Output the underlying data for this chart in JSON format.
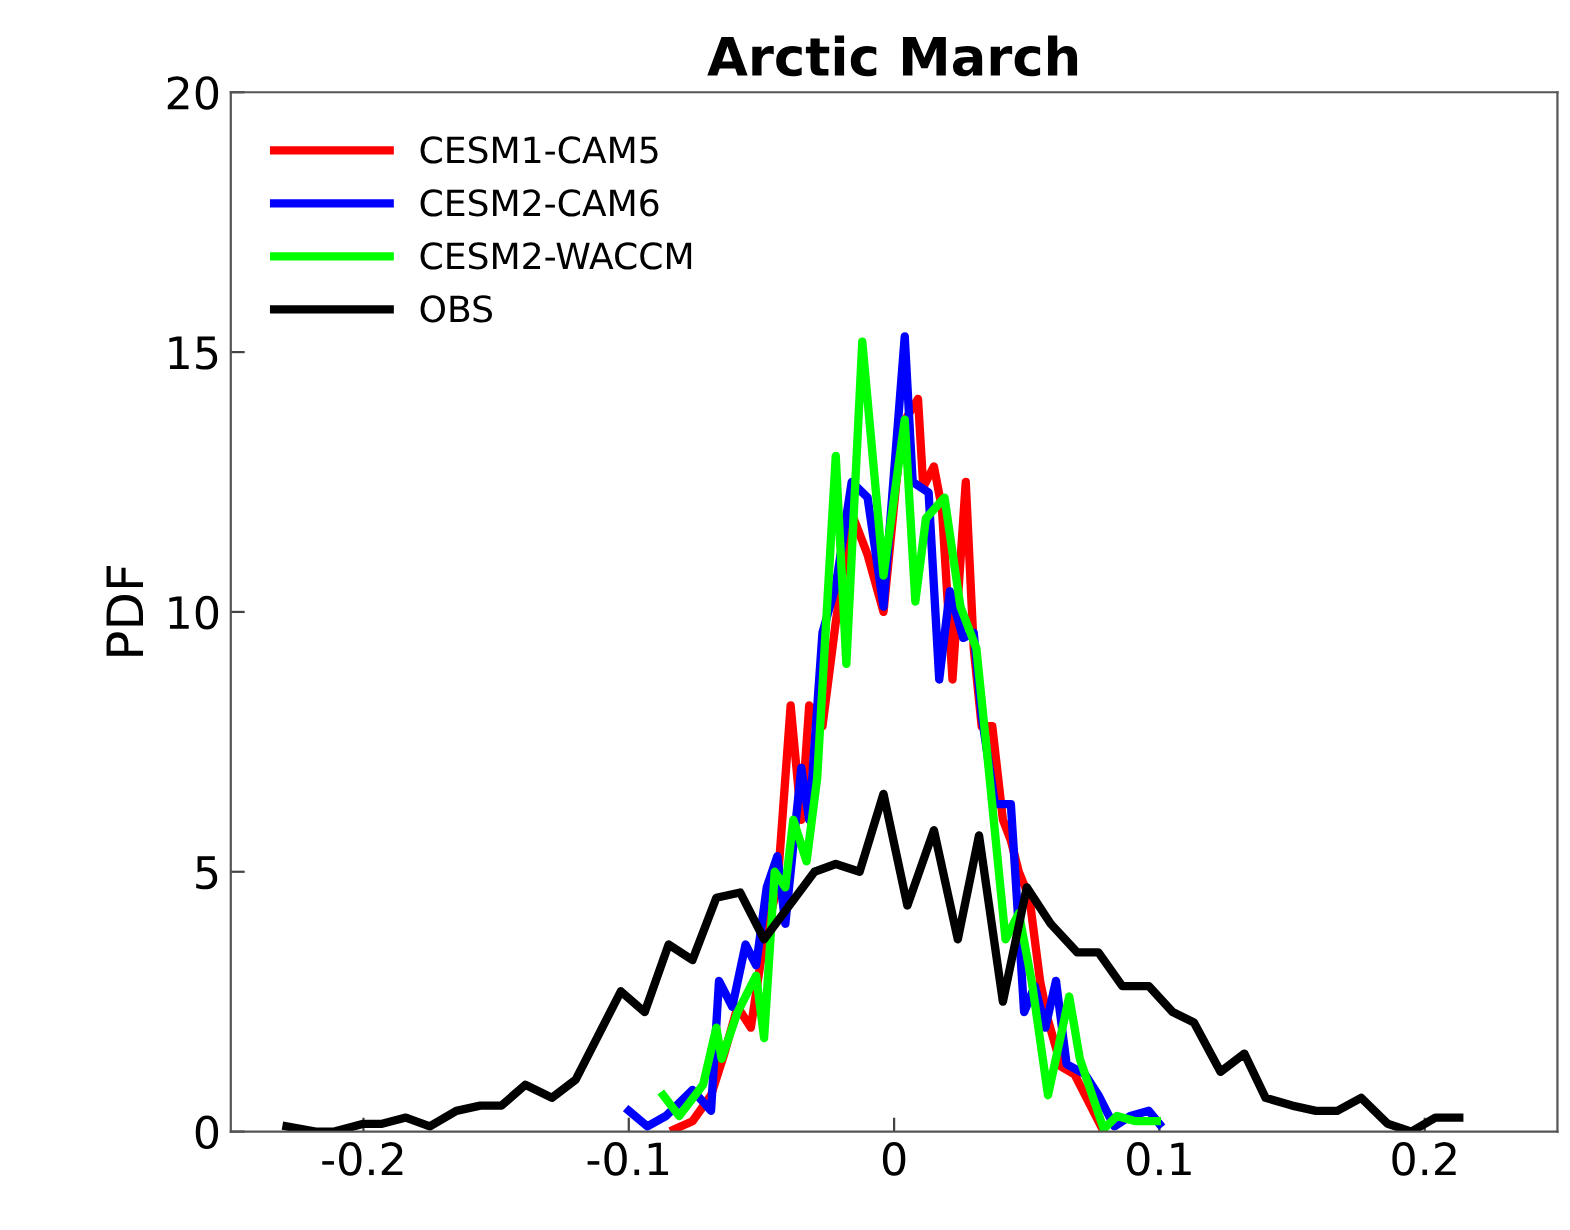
{
  "chart_data": {
    "type": "line",
    "title": "Arctic March",
    "ylabel": "PDF",
    "xlim": [
      -0.25,
      0.25
    ],
    "xticks": [
      {
        "value": -0.2,
        "label": "-0.2"
      },
      {
        "value": -0.1,
        "label": "-0.1"
      },
      0,
      0.1,
      0.2
    ],
    "ylim": [
      0,
      20
    ],
    "yticks": [
      0,
      5,
      10,
      15,
      20
    ],
    "grid": false,
    "legend": "top left",
    "line_style": "solid",
    "marker": "none",
    "series": [
      {
        "name": "CESM1-CAM5",
        "color": "#ff0000",
        "x": [
          -0.083,
          -0.076,
          -0.069,
          -0.064,
          -0.059,
          -0.054,
          -0.049,
          -0.044,
          -0.039,
          -0.035,
          -0.032,
          -0.027,
          -0.022,
          -0.016,
          -0.01,
          -0.004,
          0.003,
          0.009,
          0.011,
          0.015,
          0.018,
          0.022,
          0.027,
          0.03,
          0.033,
          0.037,
          0.041,
          0.044,
          0.047,
          0.051,
          0.055,
          0.058,
          0.063,
          0.068,
          0.073,
          0.079
        ],
        "values": [
          0.04,
          0.2,
          0.7,
          1.5,
          2.4,
          2.0,
          3.7,
          4.7,
          8.2,
          6.0,
          8.2,
          7.8,
          9.8,
          11.9,
          11.1,
          10.0,
          13.6,
          14.1,
          12.4,
          12.8,
          12.0,
          8.7,
          12.5,
          9.3,
          7.8,
          7.8,
          6.0,
          5.6,
          5.0,
          4.5,
          2.9,
          2.15,
          1.25,
          1.1,
          0.6,
          0
        ]
      },
      {
        "name": "CESM2-CAM6",
        "color": "#0000ff",
        "x": [
          -0.1,
          -0.093,
          -0.086,
          -0.076,
          -0.069,
          -0.066,
          -0.061,
          -0.056,
          -0.052,
          -0.048,
          -0.044,
          -0.041,
          -0.035,
          -0.032,
          -0.027,
          -0.022,
          -0.016,
          -0.01,
          -0.004,
          0.004,
          0.007,
          0.013,
          0.017,
          0.021,
          0.026,
          0.03,
          0.033,
          0.038,
          0.044,
          0.049,
          0.053,
          0.057,
          0.061,
          0.065,
          0.072,
          0.077,
          0.083,
          0.089,
          0.096,
          0.1
        ],
        "values": [
          0.4,
          0.1,
          0.3,
          0.8,
          0.4,
          2.9,
          2.4,
          3.6,
          3.2,
          4.7,
          5.3,
          4.0,
          7.0,
          6.0,
          9.6,
          10.5,
          12.5,
          12.2,
          10.1,
          15.3,
          12.5,
          12.3,
          8.7,
          10.4,
          9.5,
          9.6,
          8.0,
          6.3,
          6.3,
          2.3,
          2.8,
          2.0,
          2.9,
          1.3,
          1.1,
          0.7,
          0.1,
          0.3,
          0.4,
          0.15
        ]
      },
      {
        "name": "CESM2-WACCM",
        "color": "#00ff00",
        "x": [
          -0.087,
          -0.081,
          -0.072,
          -0.067,
          -0.065,
          -0.059,
          -0.052,
          -0.049,
          -0.045,
          -0.041,
          -0.038,
          -0.033,
          -0.029,
          -0.022,
          -0.018,
          -0.012,
          -0.004,
          0.004,
          0.008,
          0.012,
          0.019,
          0.025,
          0.031,
          0.036,
          0.042,
          0.047,
          0.052,
          0.058,
          0.066,
          0.07,
          0.079,
          0.084,
          0.091,
          0.099
        ],
        "values": [
          0.7,
          0.3,
          0.9,
          2.0,
          1.4,
          2.3,
          3.0,
          1.8,
          5.0,
          4.7,
          6.0,
          5.2,
          6.8,
          13.0,
          9.0,
          15.2,
          10.7,
          13.7,
          10.2,
          11.8,
          12.2,
          10.1,
          9.3,
          6.8,
          3.7,
          4.2,
          2.85,
          0.7,
          2.6,
          1.4,
          0.05,
          0.3,
          0.2,
          0.2
        ]
      },
      {
        "name": "OBS",
        "color": "#000000",
        "x": [
          -0.229,
          -0.218,
          -0.211,
          -0.2,
          -0.193,
          -0.184,
          -0.175,
          -0.165,
          -0.156,
          -0.148,
          -0.139,
          -0.129,
          -0.12,
          -0.111,
          -0.103,
          -0.094,
          -0.085,
          -0.076,
          -0.067,
          -0.058,
          -0.049,
          -0.03,
          -0.022,
          -0.013,
          -0.004,
          0.005,
          0.015,
          0.024,
          0.032,
          0.041,
          0.05,
          0.059,
          0.069,
          0.077,
          0.086,
          0.096,
          0.105,
          0.113,
          0.123,
          0.132,
          0.14,
          0.15,
          0.159,
          0.167,
          0.176,
          0.186,
          0.195,
          0.204,
          0.213
        ],
        "values": [
          0.1,
          0,
          0,
          0.15,
          0.15,
          0.27,
          0.1,
          0.4,
          0.5,
          0.5,
          0.9,
          0.65,
          1.0,
          1.9,
          2.7,
          2.3,
          3.6,
          3.3,
          4.5,
          4.6,
          3.7,
          5.0,
          5.15,
          5.0,
          6.5,
          4.35,
          5.8,
          3.7,
          5.7,
          2.5,
          4.7,
          4.0,
          3.45,
          3.45,
          2.8,
          2.8,
          2.3,
          2.1,
          1.15,
          1.5,
          0.65,
          0.5,
          0.4,
          0.4,
          0.65,
          0.15,
          0,
          0.27,
          0.27
        ]
      }
    ]
  }
}
